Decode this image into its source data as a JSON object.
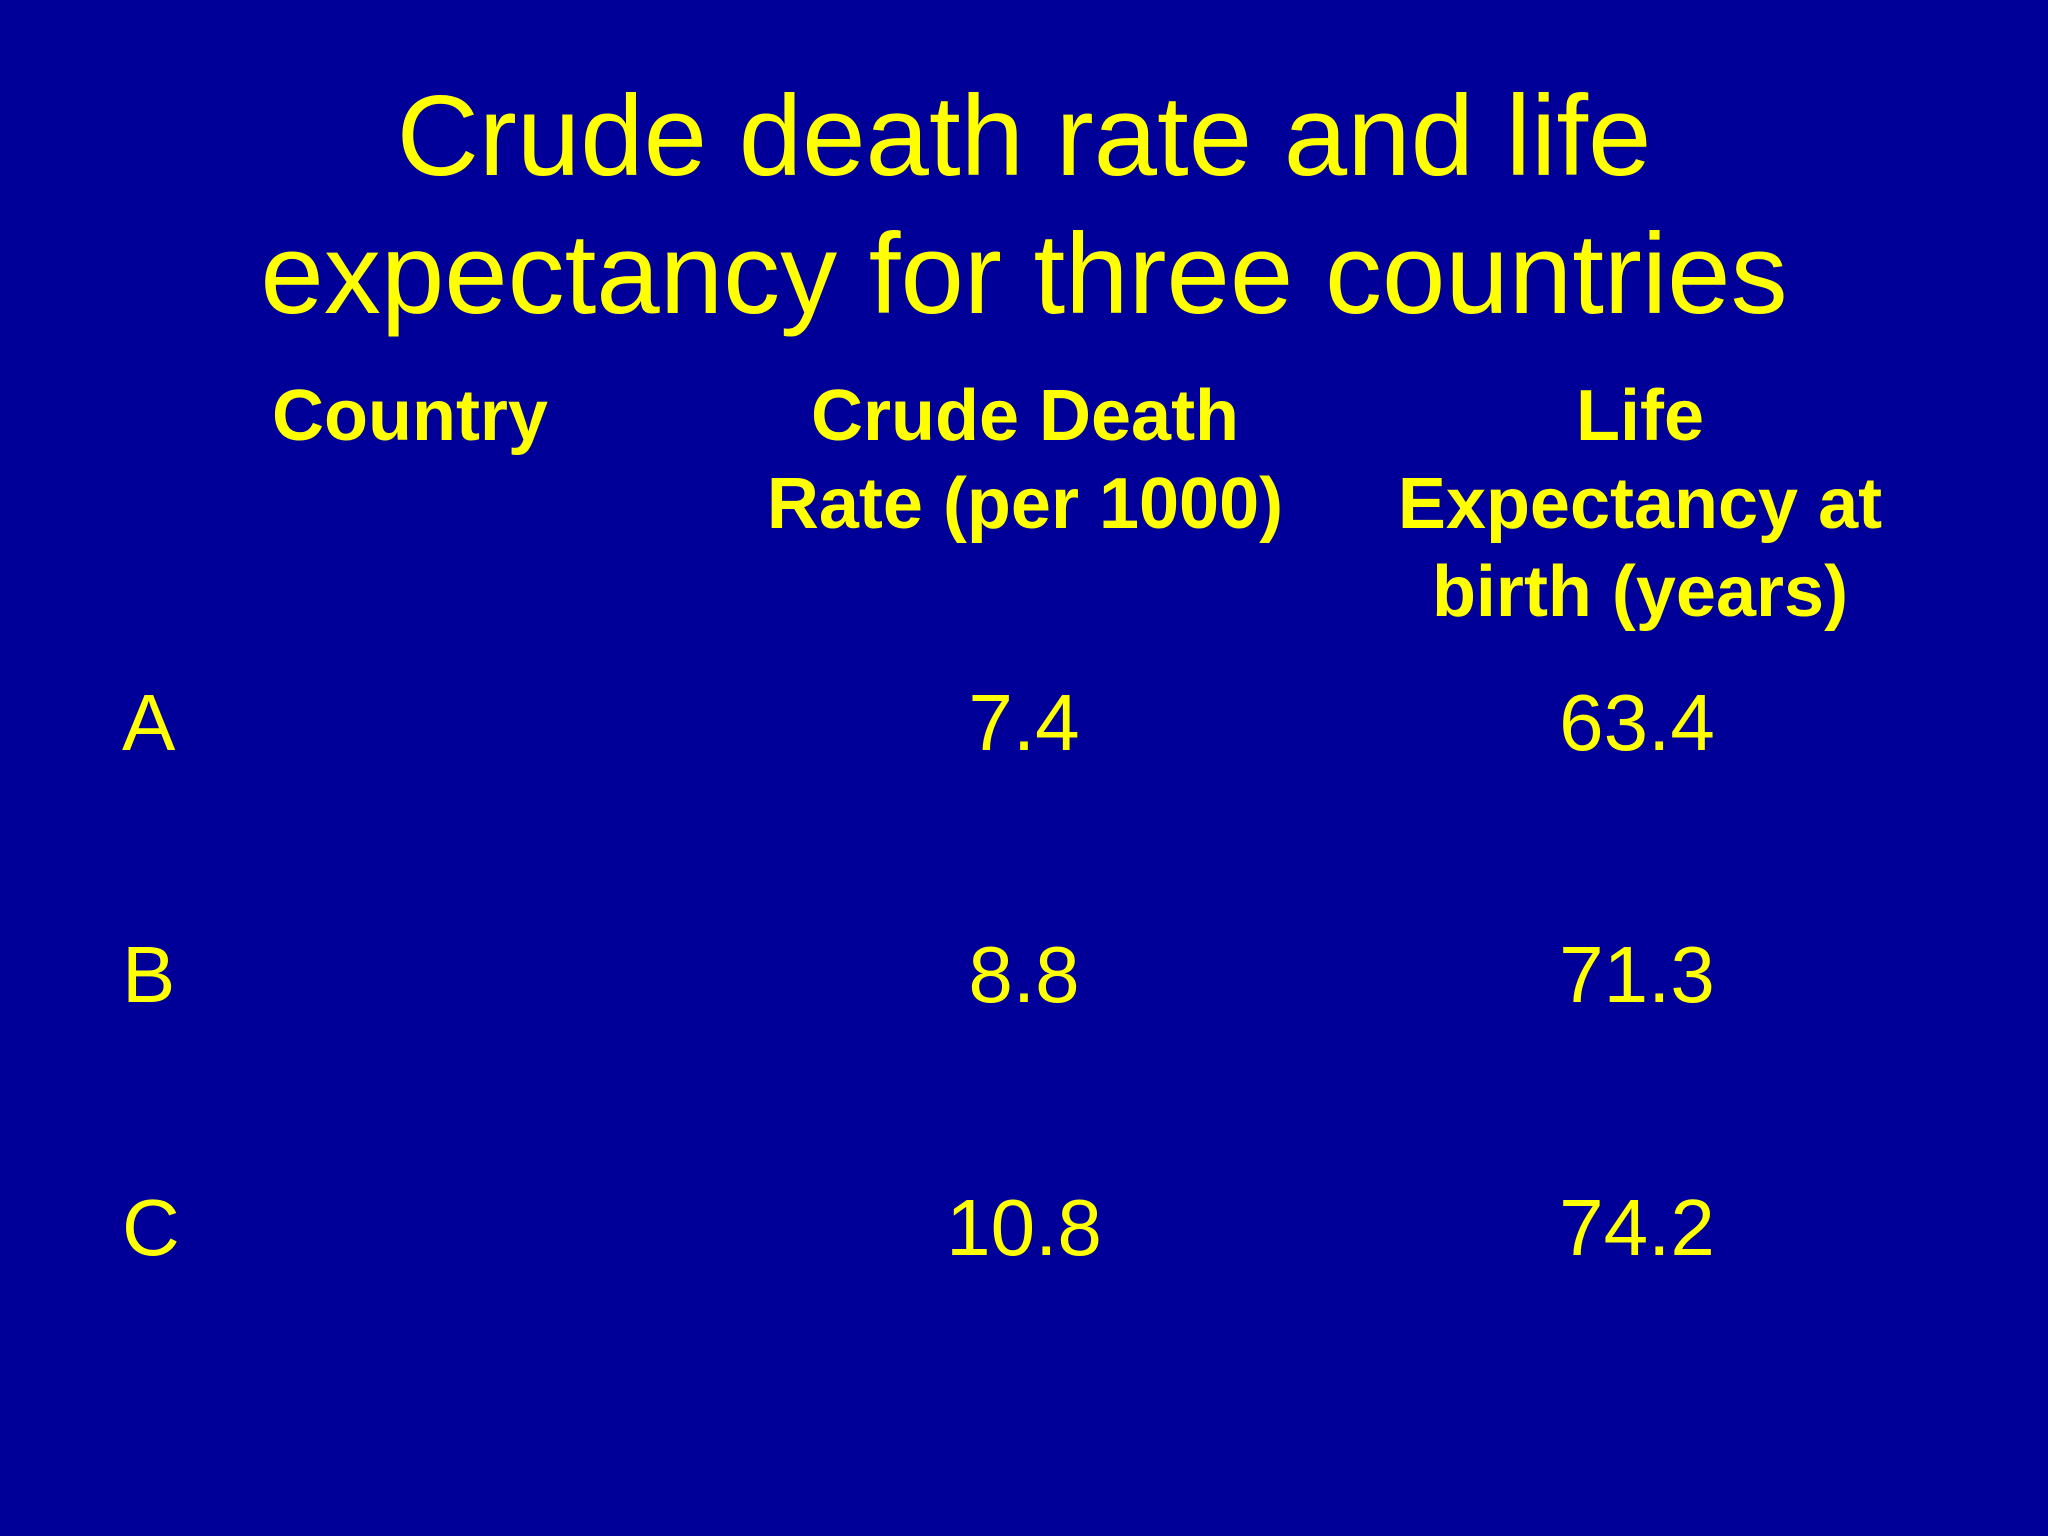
{
  "title": {
    "line1": "Crude death rate and life",
    "line2": "expectancy for three countries"
  },
  "table": {
    "headers": {
      "country": [
        "Country"
      ],
      "crude_death_rate": [
        "Crude Death",
        "Rate (per 1000)"
      ],
      "life_expectancy": [
        "Life",
        "Expectancy at",
        "birth (years)"
      ]
    },
    "rows": [
      {
        "country": "A",
        "crude_death_rate": "7.4",
        "life_expectancy": "63.4"
      },
      {
        "country": "B",
        "crude_death_rate": "8.8",
        "life_expectancy": "71.3"
      },
      {
        "country": "C",
        "crude_death_rate": "10.8",
        "life_expectancy": "74.2"
      }
    ]
  },
  "colors": {
    "background": "#000099",
    "text": "#FFFF00"
  }
}
